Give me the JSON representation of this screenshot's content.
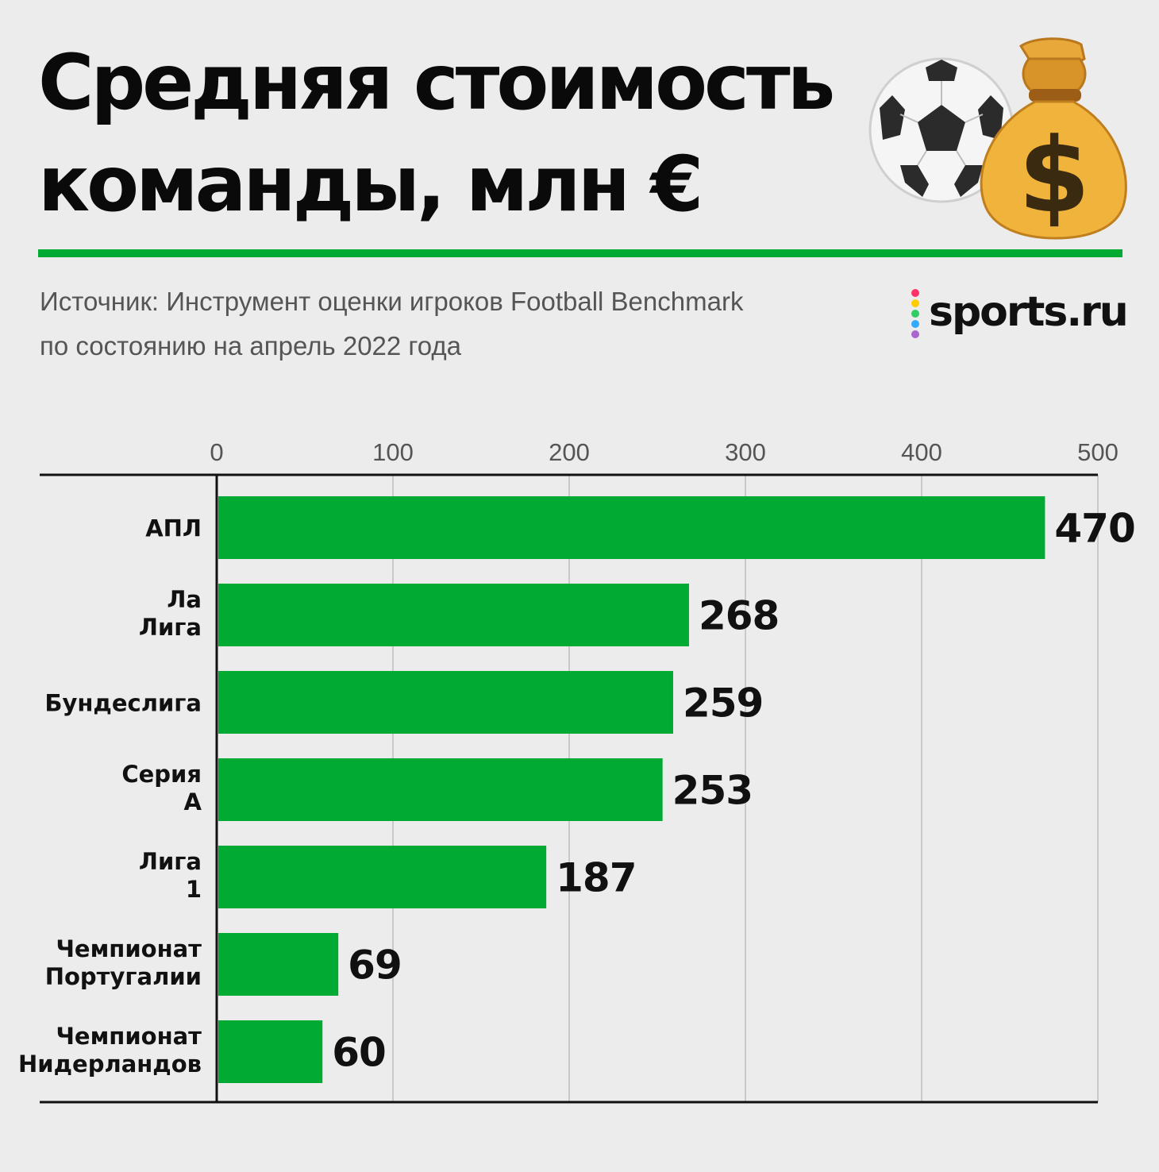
{
  "header": {
    "title_lines": [
      "Средняя стоимость",
      "команды, млн €"
    ],
    "source_lines": [
      "Источник: Инструмент оценки игроков Football Benchmark",
      "по состоянию на апрель 2022 года"
    ],
    "brand": "sports.ru",
    "icons": [
      "soccer-ball-icon",
      "money-bag-icon"
    ]
  },
  "colors": {
    "accent": "#00aa33",
    "bar": "#00aa33",
    "background": "#ececec",
    "brand_dots": [
      "#ff3366",
      "#ffcc00",
      "#33cc66",
      "#33aaff",
      "#aa66cc"
    ]
  },
  "chart_data": {
    "type": "bar",
    "orientation": "horizontal",
    "title": "Средняя стоимость команды, млн €",
    "categories": [
      "АПЛ",
      "Ла Лига",
      "Бундеслига",
      "Серия А",
      "Лига 1",
      "Чемпионат Португалии",
      "Чемпионат Нидерландов"
    ],
    "values": [
      470,
      268,
      259,
      253,
      187,
      69,
      60
    ],
    "xlim": [
      0,
      500
    ],
    "xticks": [
      0,
      100,
      200,
      300,
      400,
      500
    ],
    "grid": true,
    "xlabel": "",
    "ylabel": ""
  }
}
